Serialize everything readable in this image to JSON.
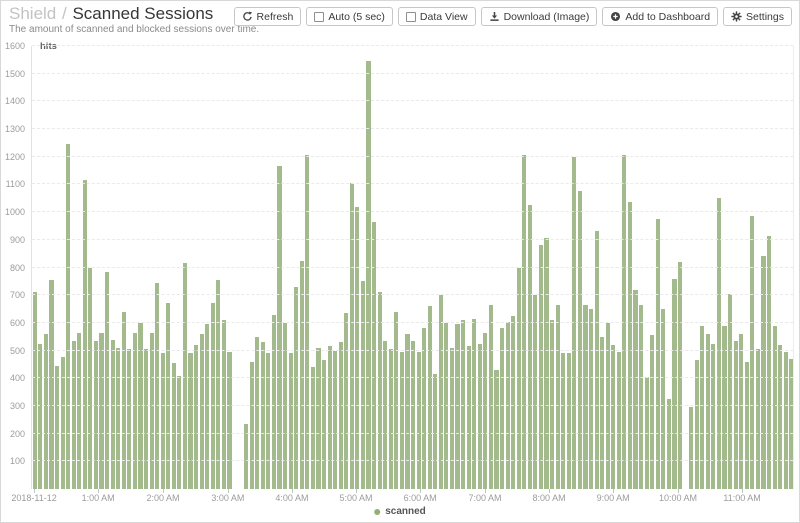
{
  "header": {
    "breadcrumb_parent": "Shield",
    "breadcrumb_separator": "/",
    "title": "Scanned Sessions",
    "subtitle": "The amount of scanned and blocked sessions over time."
  },
  "toolbar": {
    "refresh_label": "Refresh",
    "auto_label": "Auto (5 sec)",
    "data_view_label": "Data View",
    "download_label": "Download (Image)",
    "add_to_dashboard_label": "Add to Dashboard",
    "settings_label": "Settings"
  },
  "colors": {
    "bar": "#a2ba8c",
    "legend_dot": "#8fb176",
    "grid": "#eaeaea",
    "axis_text": "#9c9c9c",
    "icon": "#444444"
  },
  "chart_data": {
    "type": "bar",
    "title": "Scanned Sessions",
    "unit_label": "hits",
    "series_name": "scanned",
    "legend": [
      "scanned"
    ],
    "grid": true,
    "legend_position": "bottom-center",
    "ylim": [
      0,
      1600
    ],
    "ytick_step": 100,
    "yticks": [
      100,
      200,
      300,
      400,
      500,
      600,
      700,
      800,
      900,
      1000,
      1100,
      1200,
      1300,
      1400,
      1500,
      1600
    ],
    "x_start_label": "2018-11-12",
    "xticks": [
      {
        "label": "2018-11-12",
        "pos_pct": 0.4
      },
      {
        "label": "1:00 AM",
        "pos_pct": 8.8
      },
      {
        "label": "2:00 AM",
        "pos_pct": 17.3
      },
      {
        "label": "3:00 AM",
        "pos_pct": 25.8
      },
      {
        "label": "4:00 AM",
        "pos_pct": 34.2
      },
      {
        "label": "5:00 AM",
        "pos_pct": 42.6
      },
      {
        "label": "6:00 AM",
        "pos_pct": 51.0
      },
      {
        "label": "7:00 AM",
        "pos_pct": 59.5
      },
      {
        "label": "8:00 AM",
        "pos_pct": 67.9
      },
      {
        "label": "9:00 AM",
        "pos_pct": 76.3
      },
      {
        "label": "10:00 AM",
        "pos_pct": 84.8
      },
      {
        "label": "11:00 AM",
        "pos_pct": 93.2
      }
    ],
    "values": [
      710,
      525,
      560,
      755,
      445,
      475,
      1245,
      535,
      565,
      1115,
      800,
      535,
      565,
      785,
      540,
      510,
      640,
      505,
      565,
      600,
      505,
      565,
      745,
      490,
      670,
      455,
      410,
      815,
      490,
      520,
      560,
      595,
      670,
      755,
      610,
      495,
      null,
      null,
      235,
      460,
      550,
      530,
      490,
      630,
      1165,
      600,
      490,
      730,
      825,
      1205,
      440,
      510,
      465,
      515,
      500,
      530,
      635,
      1105,
      1020,
      750,
      1545,
      965,
      710,
      535,
      505,
      640,
      495,
      560,
      535,
      495,
      580,
      660,
      415,
      700,
      600,
      510,
      595,
      610,
      515,
      615,
      525,
      565,
      665,
      430,
      580,
      605,
      625,
      800,
      1205,
      1025,
      700,
      880,
      905,
      610,
      665,
      490,
      490,
      1200,
      1075,
      665,
      650,
      930,
      550,
      600,
      520,
      495,
      1205,
      1035,
      720,
      665,
      405,
      555,
      975,
      650,
      325,
      760,
      820,
      null,
      295,
      465,
      590,
      560,
      525,
      1050,
      590,
      705,
      535,
      560,
      460,
      985,
      505,
      840,
      915,
      590,
      520,
      495,
      470
    ]
  }
}
